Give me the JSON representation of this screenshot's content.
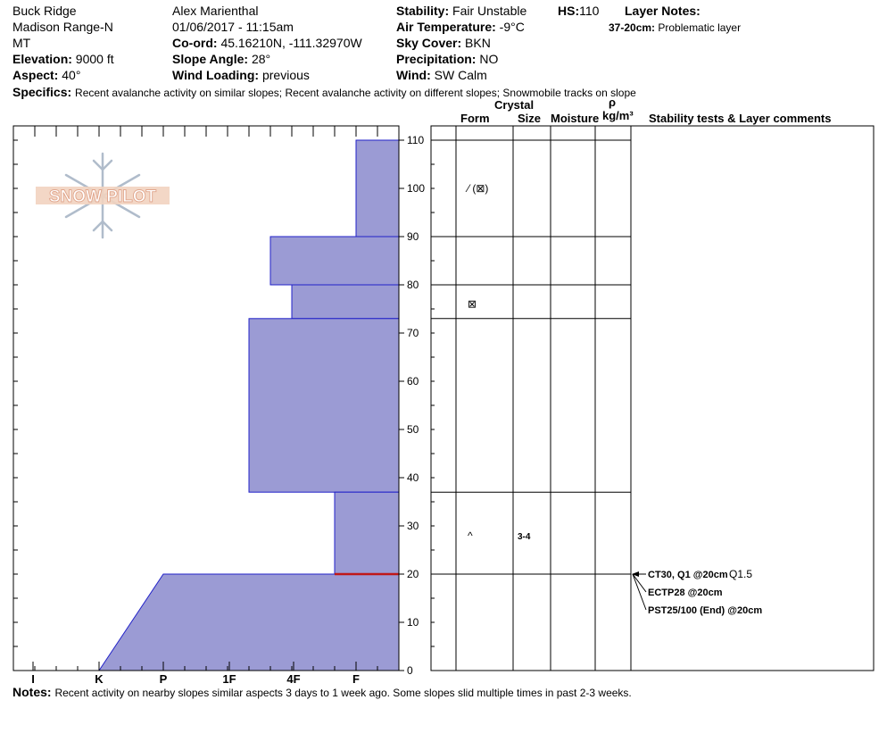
{
  "header": {
    "location": "Buck Ridge",
    "range": "Madison Range-N",
    "state": "MT",
    "elevation_label": "Elevation:",
    "elevation": "9000 ft",
    "aspect_label": "Aspect:",
    "aspect": "40°",
    "observer": "Alex Marienthal",
    "datetime": "01/06/2017 - 11:15am",
    "coord_label": "Co-ord:",
    "coord": "45.16210N, -111.32970W",
    "slope_label": "Slope Angle:",
    "slope": "28°",
    "wind_loading_label": "Wind Loading:",
    "wind_loading": "previous",
    "stability_label": "Stability:",
    "stability": "Fair Unstable",
    "air_temp_label": "Air Temperature:",
    "air_temp": "-9°C",
    "sky_label": "Sky Cover:",
    "sky": "BKN",
    "precip_label": "Precipitation:",
    "precip": "NO",
    "wind_label": "Wind:",
    "wind": "SW Calm",
    "hs_label": "HS:",
    "hs": "110",
    "layer_notes_label": "Layer Notes:",
    "layer_note_depth": "37-20cm:",
    "layer_note_text": "Problematic layer",
    "specifics_label": "Specifics:",
    "specifics": "Recent avalanche activity on similar slopes; Recent avalanche activity on different slopes; Snowmobile tracks on slope"
  },
  "logo": {
    "text": "SNOW PILOT"
  },
  "columns": {
    "crystal": "Crystal",
    "form": "Form",
    "size": "Size",
    "moisture": "Moisture",
    "rho": "ρ",
    "density_unit": "kg/m³",
    "stability": "Stability tests & Layer comments"
  },
  "notes": {
    "label": "Notes:",
    "text": "Recent activity on nearby slopes similar aspects 3 days to 1 week ago. Some slopes slid multiple times in past 2-3 weeks."
  },
  "chart_data": {
    "type": "snow_profile",
    "hardness_scale": [
      "I",
      "K",
      "P",
      "1F",
      "4F",
      "F"
    ],
    "height_ticks": [
      0,
      10,
      20,
      30,
      40,
      50,
      60,
      70,
      80,
      90,
      100,
      110
    ],
    "ylim": [
      0,
      113
    ],
    "hardness_layers": [
      {
        "top": 110,
        "bottom": 90,
        "hardness": "F"
      },
      {
        "top": 90,
        "bottom": 80,
        "hardness": "4F-"
      },
      {
        "top": 80,
        "bottom": 73,
        "hardness": "4F"
      },
      {
        "top": 73,
        "bottom": 37,
        "hardness": "1F+"
      },
      {
        "top": 37,
        "bottom": 20,
        "hardness": "F+"
      },
      {
        "top": 20,
        "bottom": 0,
        "hardness": "K to P"
      }
    ],
    "problem_layer_height": 20,
    "layer_boundaries": [
      110,
      90,
      80,
      73,
      37,
      20
    ],
    "crystal_forms": [
      {
        "height": 100,
        "symbol": "⁄ (⊠)"
      },
      {
        "height": 76,
        "symbol": "⊠"
      },
      {
        "height": 28,
        "symbol": "^",
        "size": "3-4"
      }
    ],
    "stability_tests": [
      {
        "text": "CT30, Q1 @20cm",
        "extra": "Q1.5"
      },
      {
        "text": "ECTP28 @20cm"
      },
      {
        "text": "PST25/100 (End) @20cm"
      }
    ],
    "test_height": 20
  }
}
